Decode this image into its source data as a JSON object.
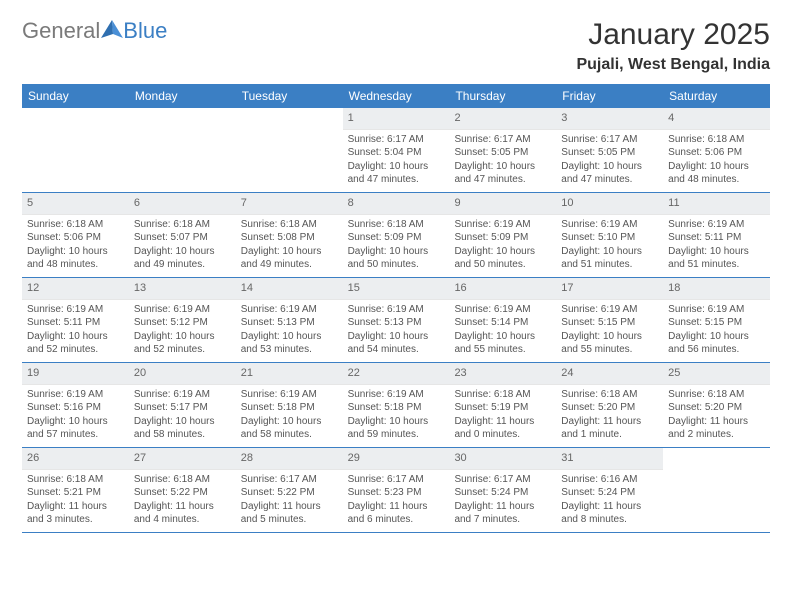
{
  "logo": {
    "general": "General",
    "blue": "Blue"
  },
  "title": "January 2025",
  "location": "Pujali, West Bengal, India",
  "colors": {
    "header_bg": "#3b7fc4",
    "header_text": "#ffffff",
    "daynum_bg": "#eceef0",
    "border": "#3b7fc4"
  },
  "daysOfWeek": [
    "Sunday",
    "Monday",
    "Tuesday",
    "Wednesday",
    "Thursday",
    "Friday",
    "Saturday"
  ],
  "weeks": [
    [
      {
        "n": "",
        "sunrise": "",
        "sunset": "",
        "daylight": ""
      },
      {
        "n": "",
        "sunrise": "",
        "sunset": "",
        "daylight": ""
      },
      {
        "n": "",
        "sunrise": "",
        "sunset": "",
        "daylight": ""
      },
      {
        "n": "1",
        "sunrise": "Sunrise: 6:17 AM",
        "sunset": "Sunset: 5:04 PM",
        "daylight": "Daylight: 10 hours and 47 minutes."
      },
      {
        "n": "2",
        "sunrise": "Sunrise: 6:17 AM",
        "sunset": "Sunset: 5:05 PM",
        "daylight": "Daylight: 10 hours and 47 minutes."
      },
      {
        "n": "3",
        "sunrise": "Sunrise: 6:17 AM",
        "sunset": "Sunset: 5:05 PM",
        "daylight": "Daylight: 10 hours and 47 minutes."
      },
      {
        "n": "4",
        "sunrise": "Sunrise: 6:18 AM",
        "sunset": "Sunset: 5:06 PM",
        "daylight": "Daylight: 10 hours and 48 minutes."
      }
    ],
    [
      {
        "n": "5",
        "sunrise": "Sunrise: 6:18 AM",
        "sunset": "Sunset: 5:06 PM",
        "daylight": "Daylight: 10 hours and 48 minutes."
      },
      {
        "n": "6",
        "sunrise": "Sunrise: 6:18 AM",
        "sunset": "Sunset: 5:07 PM",
        "daylight": "Daylight: 10 hours and 49 minutes."
      },
      {
        "n": "7",
        "sunrise": "Sunrise: 6:18 AM",
        "sunset": "Sunset: 5:08 PM",
        "daylight": "Daylight: 10 hours and 49 minutes."
      },
      {
        "n": "8",
        "sunrise": "Sunrise: 6:18 AM",
        "sunset": "Sunset: 5:09 PM",
        "daylight": "Daylight: 10 hours and 50 minutes."
      },
      {
        "n": "9",
        "sunrise": "Sunrise: 6:19 AM",
        "sunset": "Sunset: 5:09 PM",
        "daylight": "Daylight: 10 hours and 50 minutes."
      },
      {
        "n": "10",
        "sunrise": "Sunrise: 6:19 AM",
        "sunset": "Sunset: 5:10 PM",
        "daylight": "Daylight: 10 hours and 51 minutes."
      },
      {
        "n": "11",
        "sunrise": "Sunrise: 6:19 AM",
        "sunset": "Sunset: 5:11 PM",
        "daylight": "Daylight: 10 hours and 51 minutes."
      }
    ],
    [
      {
        "n": "12",
        "sunrise": "Sunrise: 6:19 AM",
        "sunset": "Sunset: 5:11 PM",
        "daylight": "Daylight: 10 hours and 52 minutes."
      },
      {
        "n": "13",
        "sunrise": "Sunrise: 6:19 AM",
        "sunset": "Sunset: 5:12 PM",
        "daylight": "Daylight: 10 hours and 52 minutes."
      },
      {
        "n": "14",
        "sunrise": "Sunrise: 6:19 AM",
        "sunset": "Sunset: 5:13 PM",
        "daylight": "Daylight: 10 hours and 53 minutes."
      },
      {
        "n": "15",
        "sunrise": "Sunrise: 6:19 AM",
        "sunset": "Sunset: 5:13 PM",
        "daylight": "Daylight: 10 hours and 54 minutes."
      },
      {
        "n": "16",
        "sunrise": "Sunrise: 6:19 AM",
        "sunset": "Sunset: 5:14 PM",
        "daylight": "Daylight: 10 hours and 55 minutes."
      },
      {
        "n": "17",
        "sunrise": "Sunrise: 6:19 AM",
        "sunset": "Sunset: 5:15 PM",
        "daylight": "Daylight: 10 hours and 55 minutes."
      },
      {
        "n": "18",
        "sunrise": "Sunrise: 6:19 AM",
        "sunset": "Sunset: 5:15 PM",
        "daylight": "Daylight: 10 hours and 56 minutes."
      }
    ],
    [
      {
        "n": "19",
        "sunrise": "Sunrise: 6:19 AM",
        "sunset": "Sunset: 5:16 PM",
        "daylight": "Daylight: 10 hours and 57 minutes."
      },
      {
        "n": "20",
        "sunrise": "Sunrise: 6:19 AM",
        "sunset": "Sunset: 5:17 PM",
        "daylight": "Daylight: 10 hours and 58 minutes."
      },
      {
        "n": "21",
        "sunrise": "Sunrise: 6:19 AM",
        "sunset": "Sunset: 5:18 PM",
        "daylight": "Daylight: 10 hours and 58 minutes."
      },
      {
        "n": "22",
        "sunrise": "Sunrise: 6:19 AM",
        "sunset": "Sunset: 5:18 PM",
        "daylight": "Daylight: 10 hours and 59 minutes."
      },
      {
        "n": "23",
        "sunrise": "Sunrise: 6:18 AM",
        "sunset": "Sunset: 5:19 PM",
        "daylight": "Daylight: 11 hours and 0 minutes."
      },
      {
        "n": "24",
        "sunrise": "Sunrise: 6:18 AM",
        "sunset": "Sunset: 5:20 PM",
        "daylight": "Daylight: 11 hours and 1 minute."
      },
      {
        "n": "25",
        "sunrise": "Sunrise: 6:18 AM",
        "sunset": "Sunset: 5:20 PM",
        "daylight": "Daylight: 11 hours and 2 minutes."
      }
    ],
    [
      {
        "n": "26",
        "sunrise": "Sunrise: 6:18 AM",
        "sunset": "Sunset: 5:21 PM",
        "daylight": "Daylight: 11 hours and 3 minutes."
      },
      {
        "n": "27",
        "sunrise": "Sunrise: 6:18 AM",
        "sunset": "Sunset: 5:22 PM",
        "daylight": "Daylight: 11 hours and 4 minutes."
      },
      {
        "n": "28",
        "sunrise": "Sunrise: 6:17 AM",
        "sunset": "Sunset: 5:22 PM",
        "daylight": "Daylight: 11 hours and 5 minutes."
      },
      {
        "n": "29",
        "sunrise": "Sunrise: 6:17 AM",
        "sunset": "Sunset: 5:23 PM",
        "daylight": "Daylight: 11 hours and 6 minutes."
      },
      {
        "n": "30",
        "sunrise": "Sunrise: 6:17 AM",
        "sunset": "Sunset: 5:24 PM",
        "daylight": "Daylight: 11 hours and 7 minutes."
      },
      {
        "n": "31",
        "sunrise": "Sunrise: 6:16 AM",
        "sunset": "Sunset: 5:24 PM",
        "daylight": "Daylight: 11 hours and 8 minutes."
      },
      {
        "n": "",
        "sunrise": "",
        "sunset": "",
        "daylight": ""
      }
    ]
  ]
}
